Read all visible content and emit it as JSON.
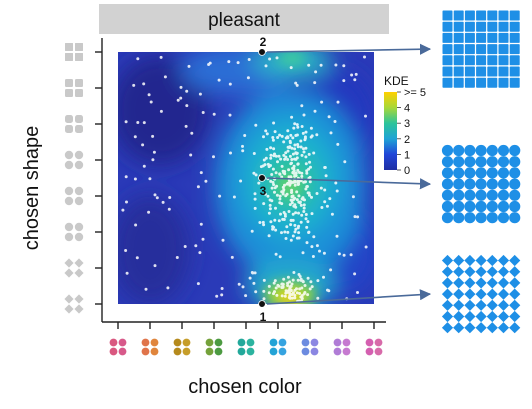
{
  "chart_data": {
    "type": "heatmap",
    "title": "pleasant",
    "xlabel": "chosen color",
    "ylabel": "chosen shape",
    "legend": {
      "title": "KDE",
      "placement": "right",
      "ticks": [
        {
          "value": 0,
          "label": "0"
        },
        {
          "value": 1,
          "label": "1"
        },
        {
          "value": 2,
          "label": "2"
        },
        {
          "value": 3,
          "label": "3"
        },
        {
          "value": 4,
          "label": "4"
        },
        {
          "value": 5,
          "label": ">= 5"
        }
      ]
    },
    "x_levels": 9,
    "y_levels": 8,
    "x_category_colors": [
      [
        "#d9577f",
        "#d7598a"
      ],
      [
        "#e0744a",
        "#e0853c"
      ],
      [
        "#b58a1c",
        "#c69d2a"
      ],
      [
        "#74a13a",
        "#4c9a41"
      ],
      [
        "#22a89a",
        "#2bb39f"
      ],
      [
        "#23a3d6",
        "#35a3e0"
      ],
      [
        "#6c8be0",
        "#8b86e2"
      ],
      [
        "#b07cd6",
        "#c67ad0"
      ],
      [
        "#d45fb0",
        "#d76aa9"
      ]
    ],
    "marked_points": [
      {
        "label": "1",
        "x": 5.5,
        "y": 1
      },
      {
        "label": "2",
        "x": 5.5,
        "y": 8
      },
      {
        "label": "3",
        "x": 5.5,
        "y": 4.5
      }
    ],
    "density_peaks": [
      {
        "x": 5.5,
        "y": 4.6,
        "kde": 3.8
      },
      {
        "x": 5.5,
        "y": 1.0,
        "kde": 4.9
      },
      {
        "x": 5.0,
        "y": 8.0,
        "kde": 2.3
      }
    ],
    "example_shapes": [
      {
        "shape": "square",
        "marked_point": "2"
      },
      {
        "shape": "circle",
        "marked_point": "3"
      },
      {
        "shape": "diamond",
        "marked_point": "1"
      }
    ],
    "shape_color": "#1e8fe6",
    "axis_icon_color": "#c9c9c9"
  }
}
